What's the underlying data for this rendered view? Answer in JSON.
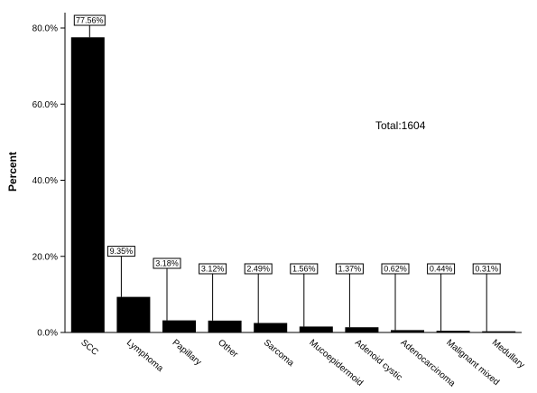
{
  "chart_data": {
    "type": "bar",
    "categories": [
      "SCC",
      "Lymphoma",
      "Papillary",
      "Other",
      "Sarcoma",
      "Mucoepidermoid",
      "Adenoid cystic",
      "Adenocarcinoma",
      "Malignant mixed",
      "Medullary"
    ],
    "values": [
      77.56,
      9.35,
      3.18,
      3.12,
      2.49,
      1.56,
      1.37,
      0.62,
      0.44,
      0.31
    ],
    "data_labels": [
      "77.56%",
      "9.35%",
      "3.18%",
      "3.12%",
      "2.49%",
      "1.56%",
      "1.37%",
      "0.62%",
      "0.44%",
      "0.31%"
    ],
    "ylabel": "Percent",
    "xlabel": "",
    "ylim": [
      0,
      80
    ],
    "yticks": [
      0,
      20,
      40,
      60,
      80
    ],
    "ytick_labels": [
      "0.0%",
      "20.0%",
      "40.0%",
      "60.0%",
      "80.0%"
    ],
    "annotation": "Total:1604",
    "bar_color": "#000000",
    "grid": false,
    "legend": "none"
  }
}
